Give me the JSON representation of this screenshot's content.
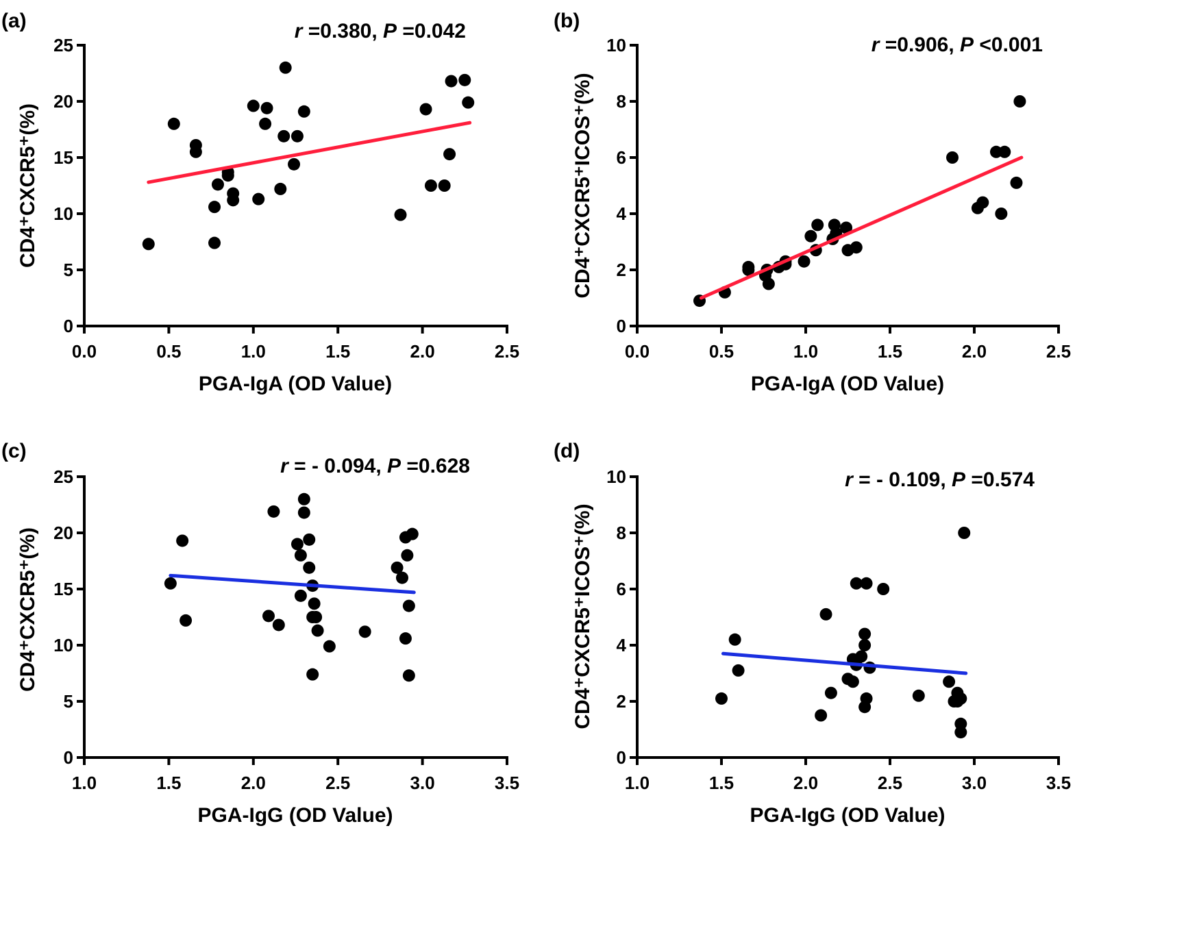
{
  "colors": {
    "fit_red": "#ff1e3c",
    "fit_blue": "#1a2fe0",
    "points": "#000000"
  },
  "chart_data": [
    {
      "type": "scatter",
      "panel_label": "(a)",
      "xlabel": "PGA-IgA (OD Value)",
      "ylabel": "CD4⁺CXCR5⁺(%)",
      "xlim": [
        0.0,
        2.5
      ],
      "ylim": [
        0,
        25
      ],
      "xticks": [
        "0.0",
        "0.5",
        "1.0",
        "1.5",
        "2.0",
        "2.5"
      ],
      "yticks": [
        "0",
        "5",
        "10",
        "15",
        "20",
        "25"
      ],
      "grid": false,
      "annotation": {
        "r_symbol": "r",
        "r_value": " =0.380, ",
        "p_symbol": "P",
        "p_value": " =0.042"
      },
      "fit_line": {
        "color": "red",
        "x": [
          0.38,
          2.28
        ],
        "y": [
          12.8,
          18.1
        ]
      },
      "points": [
        [
          0.38,
          7.3
        ],
        [
          0.53,
          18.0
        ],
        [
          0.66,
          16.1
        ],
        [
          0.66,
          15.5
        ],
        [
          0.77,
          10.6
        ],
        [
          0.79,
          12.6
        ],
        [
          0.77,
          7.4
        ],
        [
          0.85,
          13.7
        ],
        [
          0.85,
          13.4
        ],
        [
          0.88,
          11.8
        ],
        [
          0.88,
          11.2
        ],
        [
          1.0,
          19.6
        ],
        [
          1.03,
          11.3
        ],
        [
          1.08,
          19.4
        ],
        [
          1.07,
          18.0
        ],
        [
          1.16,
          12.2
        ],
        [
          1.18,
          16.9
        ],
        [
          1.19,
          23.0
        ],
        [
          1.24,
          14.4
        ],
        [
          1.26,
          16.9
        ],
        [
          1.3,
          19.1
        ],
        [
          1.87,
          9.9
        ],
        [
          2.02,
          19.3
        ],
        [
          2.05,
          12.5
        ],
        [
          2.13,
          12.5
        ],
        [
          2.16,
          15.3
        ],
        [
          2.17,
          21.8
        ],
        [
          2.25,
          21.9
        ],
        [
          2.27,
          19.9
        ]
      ]
    },
    {
      "type": "scatter",
      "panel_label": "(b)",
      "xlabel": "PGA-IgA (OD Value)",
      "ylabel": "CD4⁺CXCR5⁺ICOS⁺(%)",
      "xlim": [
        0.0,
        2.5
      ],
      "ylim": [
        0,
        10
      ],
      "xticks": [
        "0.0",
        "0.5",
        "1.0",
        "1.5",
        "2.0",
        "2.5"
      ],
      "yticks": [
        "0",
        "2",
        "4",
        "6",
        "8",
        "10"
      ],
      "grid": false,
      "annotation": {
        "r_symbol": "r",
        "r_value": " =0.906, ",
        "p_symbol": "P",
        "p_value": " <0.001"
      },
      "fit_line": {
        "color": "red",
        "x": [
          0.38,
          2.28
        ],
        "y": [
          1.0,
          6.0
        ]
      },
      "points": [
        [
          0.37,
          0.9
        ],
        [
          0.52,
          1.2
        ],
        [
          0.66,
          2.1
        ],
        [
          0.66,
          2.0
        ],
        [
          0.76,
          1.8
        ],
        [
          0.77,
          2.0
        ],
        [
          0.78,
          1.5
        ],
        [
          0.84,
          2.1
        ],
        [
          0.88,
          2.3
        ],
        [
          0.88,
          2.2
        ],
        [
          0.99,
          2.3
        ],
        [
          1.03,
          3.2
        ],
        [
          1.06,
          2.7
        ],
        [
          1.07,
          3.6
        ],
        [
          1.16,
          3.1
        ],
        [
          1.17,
          3.6
        ],
        [
          1.18,
          3.3
        ],
        [
          1.24,
          3.5
        ],
        [
          1.25,
          2.7
        ],
        [
          1.3,
          2.8
        ],
        [
          1.87,
          6.0
        ],
        [
          2.02,
          4.2
        ],
        [
          2.05,
          4.4
        ],
        [
          2.13,
          6.2
        ],
        [
          2.16,
          4.0
        ],
        [
          2.18,
          6.2
        ],
        [
          2.25,
          5.1
        ],
        [
          2.27,
          8.0
        ]
      ]
    },
    {
      "type": "scatter",
      "panel_label": "(c)",
      "xlabel": "PGA-IgG (OD Value)",
      "ylabel": "CD4⁺CXCR5⁺(%)",
      "xlim": [
        1.0,
        3.5
      ],
      "ylim": [
        0,
        25
      ],
      "xticks": [
        "1.0",
        "1.5",
        "2.0",
        "2.5",
        "3.0",
        "3.5"
      ],
      "yticks": [
        "0",
        "5",
        "10",
        "15",
        "20",
        "25"
      ],
      "grid": false,
      "annotation": {
        "r_symbol": "r",
        "r_value": " = - 0.094, ",
        "p_symbol": "P",
        "p_value": " =0.628"
      },
      "fit_line": {
        "color": "blue",
        "x": [
          1.51,
          2.95
        ],
        "y": [
          16.2,
          14.7
        ]
      },
      "points": [
        [
          1.51,
          15.5
        ],
        [
          1.58,
          19.3
        ],
        [
          1.6,
          12.2
        ],
        [
          2.12,
          21.9
        ],
        [
          2.09,
          12.6
        ],
        [
          2.15,
          11.8
        ],
        [
          2.26,
          19.0
        ],
        [
          2.28,
          18.0
        ],
        [
          2.28,
          14.4
        ],
        [
          2.3,
          23.0
        ],
        [
          2.3,
          21.8
        ],
        [
          2.33,
          16.9
        ],
        [
          2.33,
          19.4
        ],
        [
          2.35,
          15.3
        ],
        [
          2.36,
          13.7
        ],
        [
          2.35,
          12.5
        ],
        [
          2.37,
          12.5
        ],
        [
          2.38,
          11.3
        ],
        [
          2.35,
          7.4
        ],
        [
          2.45,
          9.9
        ],
        [
          2.66,
          11.2
        ],
        [
          2.85,
          16.9
        ],
        [
          2.88,
          16.0
        ],
        [
          2.9,
          19.6
        ],
        [
          2.91,
          18.0
        ],
        [
          2.92,
          13.5
        ],
        [
          2.9,
          10.6
        ],
        [
          2.92,
          7.3
        ],
        [
          2.94,
          19.9
        ]
      ]
    },
    {
      "type": "scatter",
      "panel_label": "(d)",
      "xlabel": "PGA-IgG (OD Value)",
      "ylabel": "CD4⁺CXCR5⁺ICOS⁺(%)",
      "xlim": [
        1.0,
        3.5
      ],
      "ylim": [
        0,
        10
      ],
      "xticks": [
        "1.0",
        "1.5",
        "2.0",
        "2.5",
        "3.0",
        "3.5"
      ],
      "yticks": [
        "0",
        "2",
        "4",
        "6",
        "8",
        "10"
      ],
      "grid": false,
      "annotation": {
        "r_symbol": "r",
        "r_value": " = - 0.109, ",
        "p_symbol": "P",
        "p_value": " =0.574"
      },
      "fit_line": {
        "color": "blue",
        "x": [
          1.51,
          2.95
        ],
        "y": [
          3.7,
          3.0
        ]
      },
      "points": [
        [
          1.5,
          2.1
        ],
        [
          1.58,
          4.2
        ],
        [
          1.6,
          3.1
        ],
        [
          2.09,
          1.5
        ],
        [
          2.12,
          5.1
        ],
        [
          2.15,
          2.3
        ],
        [
          2.25,
          2.8
        ],
        [
          2.28,
          3.5
        ],
        [
          2.28,
          2.7
        ],
        [
          2.3,
          6.2
        ],
        [
          2.3,
          3.3
        ],
        [
          2.33,
          3.6
        ],
        [
          2.35,
          4.4
        ],
        [
          2.35,
          4.0
        ],
        [
          2.35,
          1.8
        ],
        [
          2.36,
          6.2
        ],
        [
          2.36,
          2.1
        ],
        [
          2.38,
          3.2
        ],
        [
          2.46,
          6.0
        ],
        [
          2.67,
          2.2
        ],
        [
          2.85,
          2.7
        ],
        [
          2.88,
          2.0
        ],
        [
          2.9,
          2.3
        ],
        [
          2.9,
          2.0
        ],
        [
          2.92,
          2.1
        ],
        [
          2.92,
          1.2
        ],
        [
          2.92,
          0.9
        ],
        [
          2.94,
          8.0
        ]
      ]
    }
  ]
}
